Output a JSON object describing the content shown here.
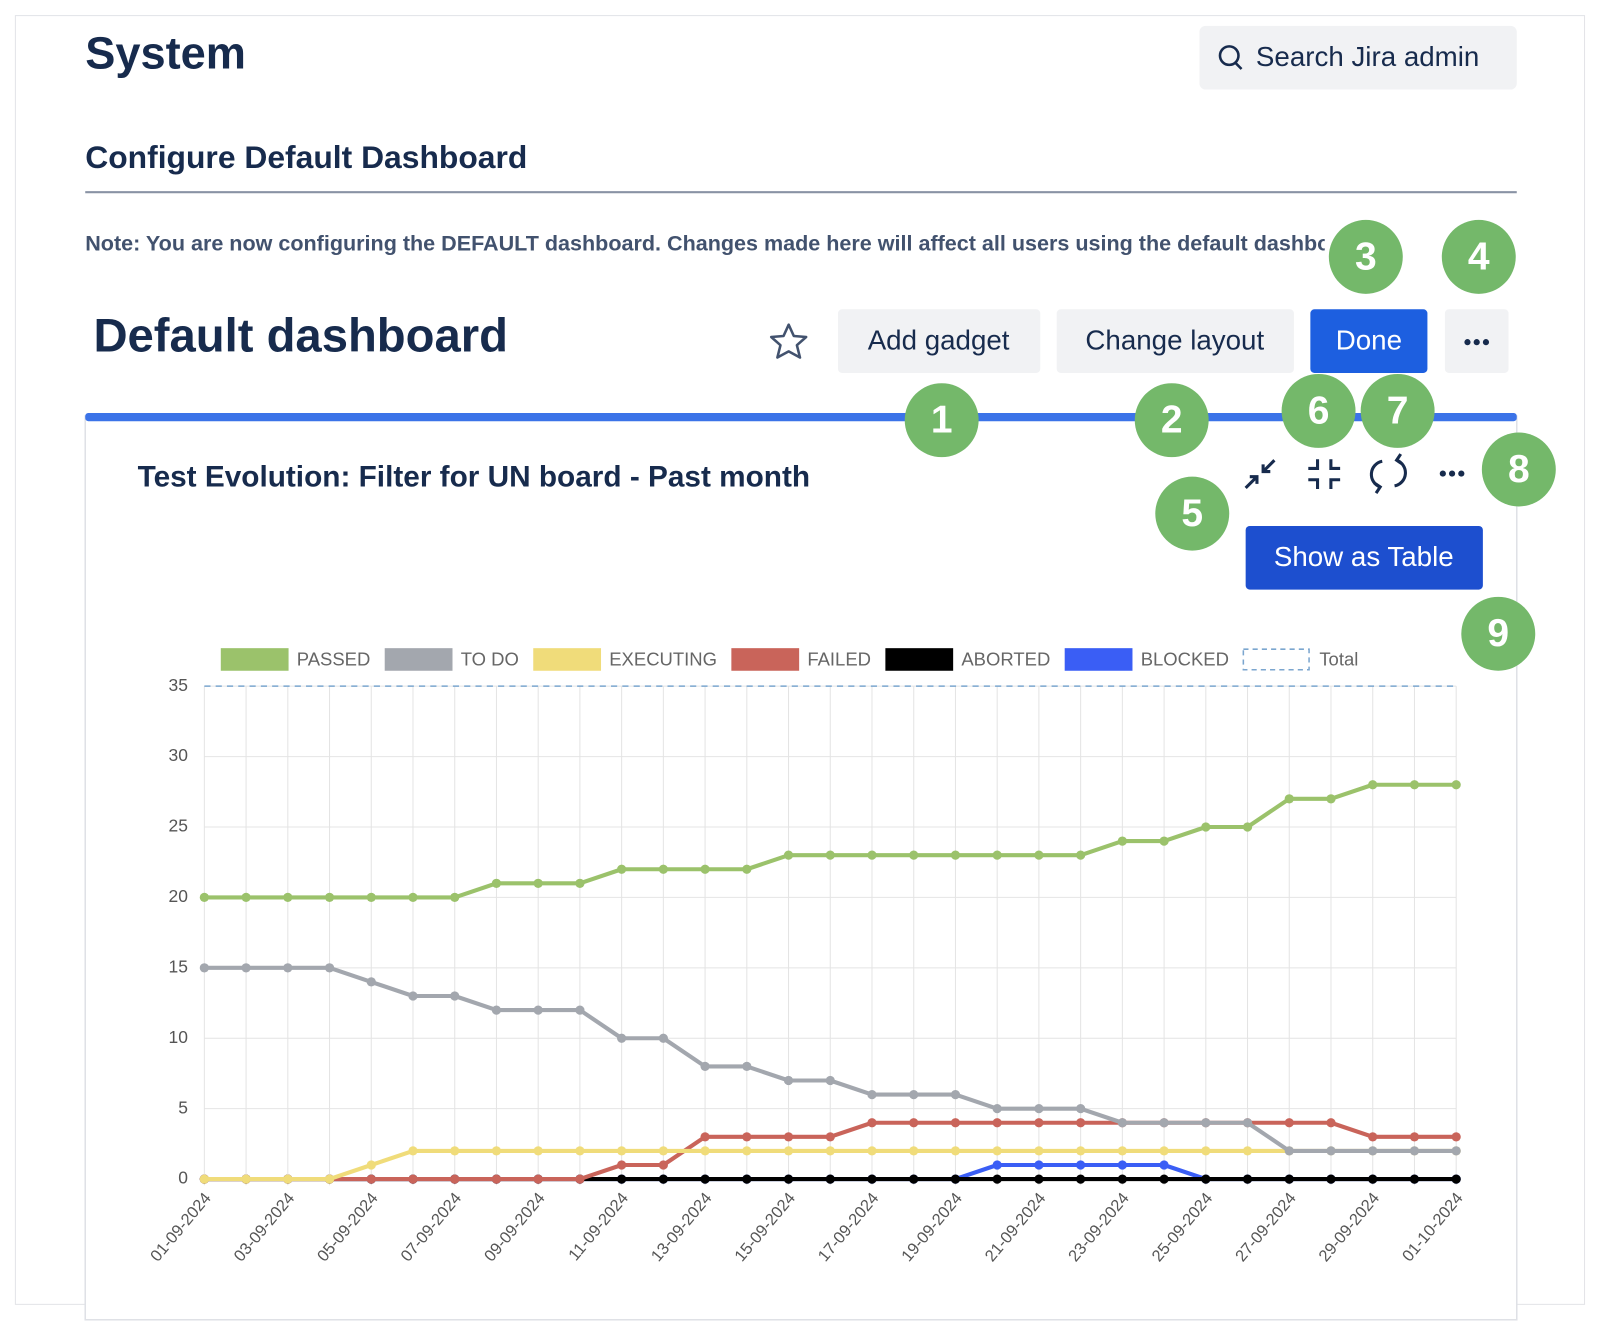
{
  "header": {
    "title": "System",
    "search": "Search Jira admin"
  },
  "page": {
    "subtitle": "Configure Default Dashboard",
    "note": "Note: You are now configuring the DEFAULT dashboard. Changes made here will affect all users using the default dashboard."
  },
  "dashboard": {
    "title": "Default dashboard",
    "buttons": [
      "Add gadget",
      "Change layout",
      "Done"
    ]
  },
  "gadget": {
    "title": "Test Evolution: Filter for UN board - Past month",
    "button": "Show as Table"
  },
  "badges": [
    "1",
    "2",
    "3",
    "4",
    "5",
    "6",
    "7",
    "8",
    "9"
  ],
  "chart_data": {
    "type": "line",
    "categories": [
      "01-09-2024",
      null,
      "03-09-2024",
      null,
      "05-09-2024",
      null,
      "07-09-2024",
      null,
      "09-09-2024",
      null,
      "11-09-2024",
      null,
      "13-09-2024",
      null,
      "15-09-2024",
      null,
      "17-09-2024",
      null,
      "19-09-2024",
      null,
      "21-09-2024",
      null,
      "23-09-2024",
      null,
      "25-09-2024",
      null,
      "27-09-2024",
      null,
      "29-09-2024",
      null,
      "01-10-2024"
    ],
    "series": [
      {
        "name": "PASSED",
        "color": "#9bc26b",
        "values": [
          20,
          20,
          20,
          20,
          20,
          20,
          20,
          21,
          21,
          21,
          22,
          22,
          22,
          22,
          23,
          23,
          23,
          23,
          23,
          23,
          23,
          23,
          24,
          24,
          25,
          25,
          27,
          27,
          28,
          28,
          28
        ]
      },
      {
        "name": "TO DO",
        "color": "#a3a7ae",
        "values": [
          15,
          15,
          15,
          15,
          14,
          13,
          13,
          12,
          12,
          12,
          10,
          10,
          8,
          8,
          7,
          7,
          6,
          6,
          6,
          5,
          5,
          5,
          4,
          4,
          4,
          4,
          2,
          2,
          2,
          2,
          2
        ]
      },
      {
        "name": "EXECUTING",
        "color": "#f0dc7a",
        "values": [
          0,
          0,
          0,
          0,
          1,
          2,
          2,
          2,
          2,
          2,
          2,
          2,
          2,
          2,
          2,
          2,
          2,
          2,
          2,
          2,
          2,
          2,
          2,
          2,
          2,
          2,
          2,
          2,
          2,
          2,
          2
        ]
      },
      {
        "name": "FAILED",
        "color": "#c9645a",
        "values": [
          0,
          0,
          0,
          0,
          0,
          0,
          0,
          0,
          0,
          0,
          1,
          1,
          3,
          3,
          3,
          3,
          4,
          4,
          4,
          4,
          4,
          4,
          4,
          4,
          4,
          4,
          4,
          4,
          3,
          3,
          3
        ]
      },
      {
        "name": "ABORTED",
        "color": "#000000",
        "values": [
          0,
          0,
          0,
          0,
          0,
          0,
          0,
          0,
          0,
          0,
          0,
          0,
          0,
          0,
          0,
          0,
          0,
          0,
          0,
          0,
          0,
          0,
          0,
          0,
          0,
          0,
          0,
          0,
          0,
          0,
          0
        ]
      },
      {
        "name": "BLOCKED",
        "color": "#3a5ef5",
        "values": [
          0,
          0,
          0,
          0,
          0,
          0,
          0,
          0,
          0,
          0,
          0,
          0,
          0,
          0,
          0,
          0,
          0,
          0,
          0,
          1,
          1,
          1,
          1,
          1,
          0,
          0,
          0,
          0,
          0,
          0,
          0
        ]
      },
      {
        "name": "Total",
        "color": "#7ba6cf",
        "dash": true,
        "values": [
          35,
          35,
          35,
          35,
          35,
          35,
          35,
          35,
          35,
          35,
          35,
          35,
          35,
          35,
          35,
          35,
          35,
          35,
          35,
          35,
          35,
          35,
          35,
          35,
          35,
          35,
          35,
          35,
          35,
          35,
          35
        ]
      }
    ],
    "ylim": [
      0,
      35
    ],
    "yticks": [
      0,
      5,
      10,
      15,
      20,
      25,
      30,
      35
    ],
    "grid": true,
    "legend": "top"
  }
}
